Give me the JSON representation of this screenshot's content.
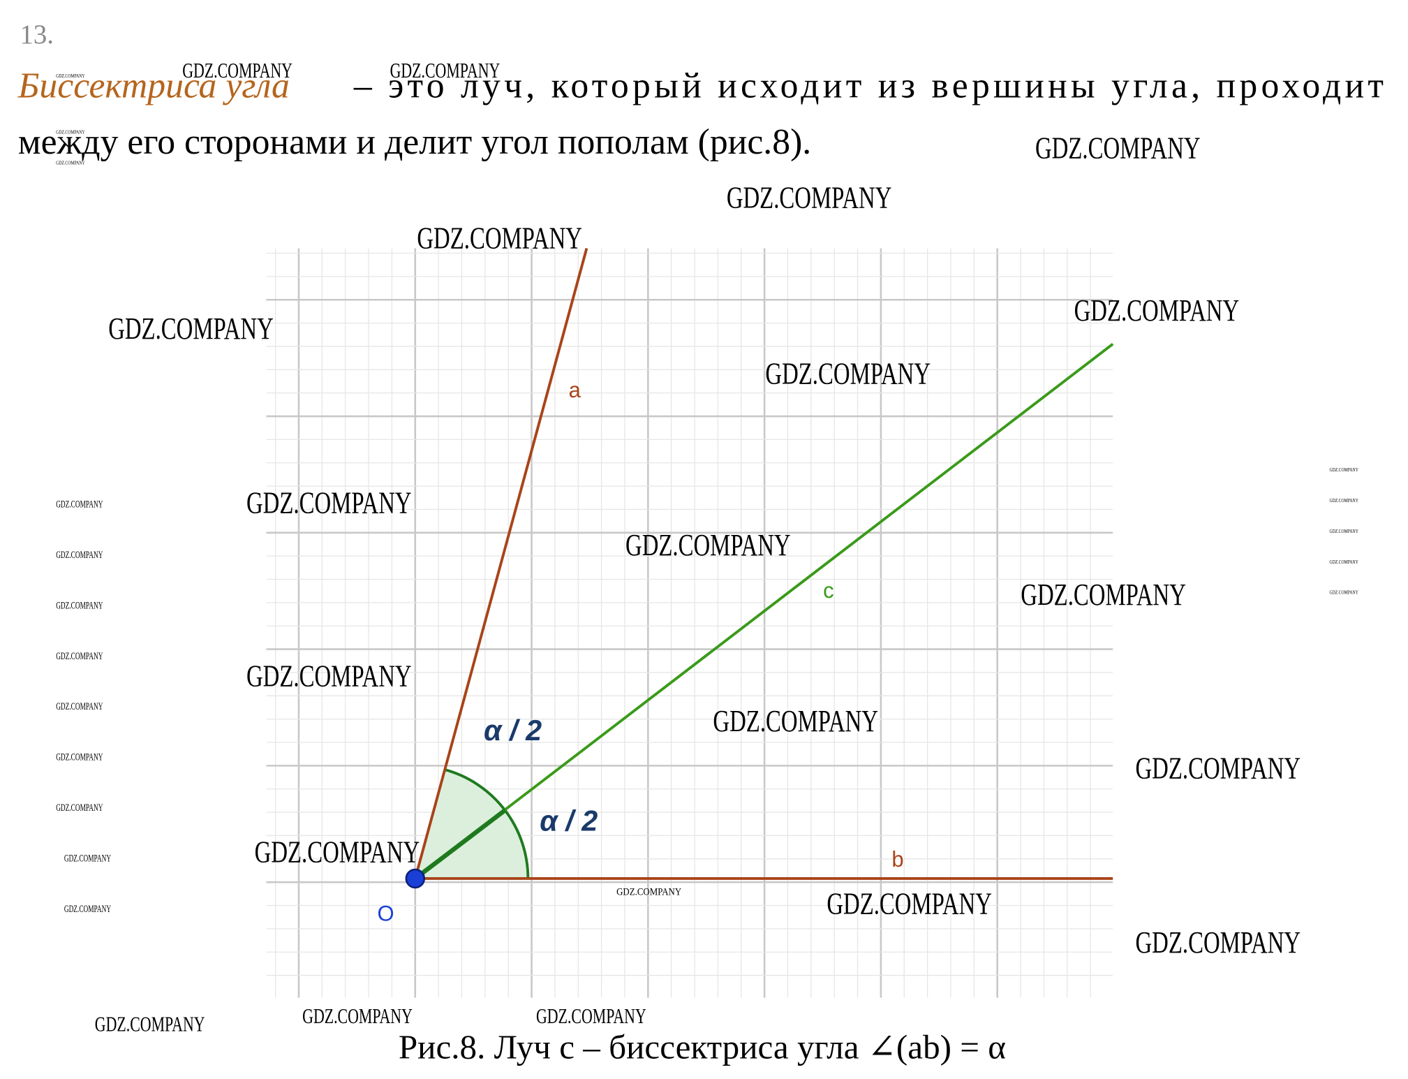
{
  "number": "13.",
  "paragraph": {
    "term": "Биссектриса угла",
    "line1": "– это луч, который исходит из вершины угла, проходит",
    "line2": "между его сторонами и делит угол пополам (рис.8)."
  },
  "figure": {
    "ray_a": "a",
    "ray_b": "b",
    "ray_c": "c",
    "vertex": "O",
    "half_angle": "α / 2",
    "caption": "Рис.8. Луч c – биссектриса угла ∠(ab) = α"
  },
  "watermark": "GDZ.COMPANY"
}
